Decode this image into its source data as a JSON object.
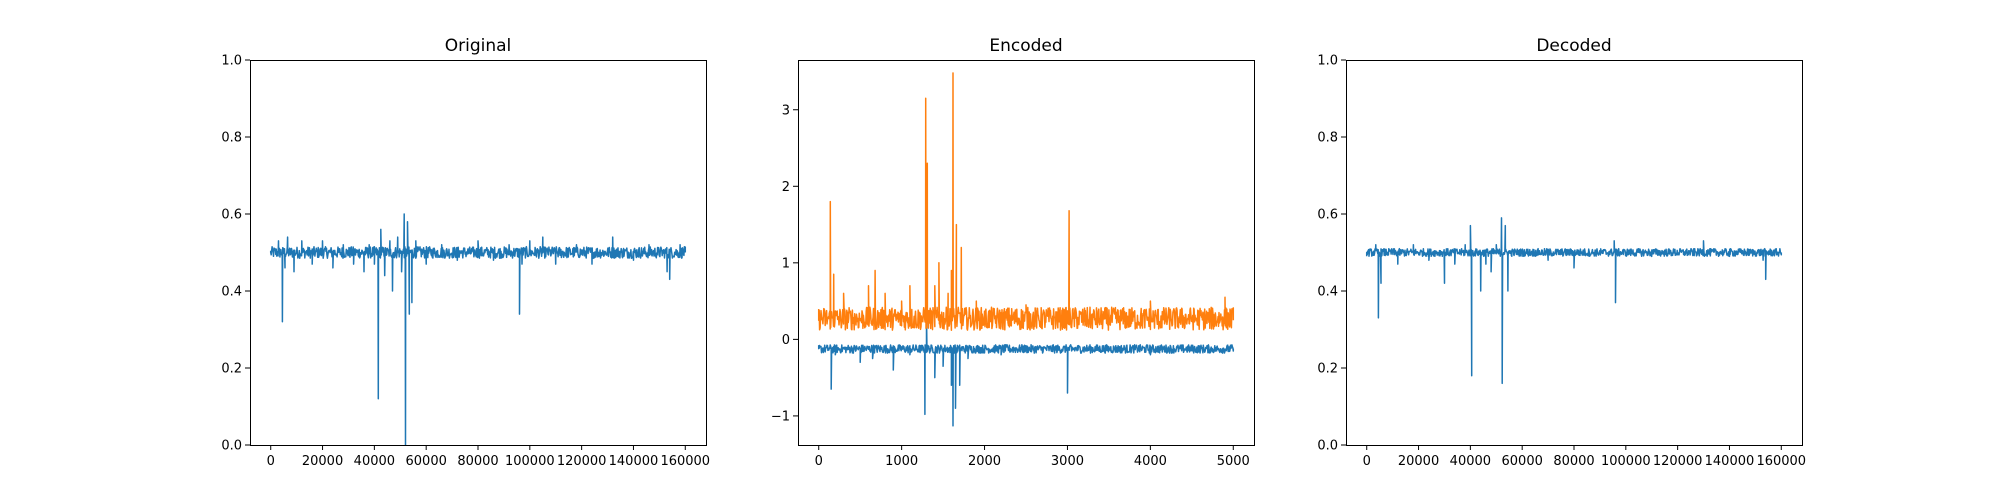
{
  "chart_data": [
    {
      "type": "line",
      "title": "Original",
      "xlabel": "",
      "ylabel": "",
      "xlim": [
        -8000,
        168000
      ],
      "ylim": [
        0.0,
        1.0
      ],
      "x_ticks": [
        0,
        20000,
        40000,
        60000,
        80000,
        100000,
        120000,
        140000,
        160000
      ],
      "x_tick_labels": [
        "0",
        "20000",
        "40000",
        "60000",
        "80000",
        "100000",
        "120000",
        "140000",
        "160000"
      ],
      "y_ticks": [
        0.0,
        0.2,
        0.4,
        0.6,
        0.8,
        1.0
      ],
      "y_tick_labels": [
        "0.0",
        "0.2",
        "0.4",
        "0.6",
        "0.8",
        "1.0"
      ],
      "grid": false,
      "series": [
        {
          "color": "#1f77b4",
          "baseline": 0.5,
          "band": [
            0.485,
            0.515
          ],
          "x_range": [
            0,
            160000
          ],
          "points": [
            [
              0,
              0.5
            ],
            [
              3000,
              0.53
            ],
            [
              4500,
              0.32
            ],
            [
              5500,
              0.46
            ],
            [
              6500,
              0.54
            ],
            [
              9000,
              0.45
            ],
            [
              12000,
              0.53
            ],
            [
              16000,
              0.47
            ],
            [
              20000,
              0.53
            ],
            [
              24000,
              0.46
            ],
            [
              28000,
              0.52
            ],
            [
              32000,
              0.47
            ],
            [
              36000,
              0.45
            ],
            [
              38000,
              0.52
            ],
            [
              40000,
              0.47
            ],
            [
              41500,
              0.12
            ],
            [
              42500,
              0.56
            ],
            [
              44000,
              0.44
            ],
            [
              46000,
              0.53
            ],
            [
              47000,
              0.4
            ],
            [
              49000,
              0.54
            ],
            [
              50500,
              0.45
            ],
            [
              51500,
              0.6
            ],
            [
              52000,
              0.0
            ],
            [
              52800,
              0.58
            ],
            [
              53500,
              0.34
            ],
            [
              54500,
              0.37
            ],
            [
              56000,
              0.53
            ],
            [
              60000,
              0.47
            ],
            [
              66000,
              0.52
            ],
            [
              72000,
              0.48
            ],
            [
              80000,
              0.53
            ],
            [
              86000,
              0.48
            ],
            [
              92000,
              0.52
            ],
            [
              96000,
              0.34
            ],
            [
              97000,
              0.47
            ],
            [
              100000,
              0.53
            ],
            [
              105000,
              0.54
            ],
            [
              110000,
              0.47
            ],
            [
              118000,
              0.52
            ],
            [
              124000,
              0.47
            ],
            [
              132000,
              0.54
            ],
            [
              140000,
              0.48
            ],
            [
              146000,
              0.52
            ],
            [
              153000,
              0.45
            ],
            [
              154000,
              0.43
            ],
            [
              158000,
              0.52
            ],
            [
              160000,
              0.5
            ]
          ]
        }
      ]
    },
    {
      "type": "line",
      "title": "Encoded",
      "xlabel": "",
      "ylabel": "",
      "xlim": [
        -250,
        5250
      ],
      "ylim": [
        -1.38,
        3.65
      ],
      "x_ticks": [
        0,
        1000,
        2000,
        3000,
        4000,
        5000
      ],
      "x_tick_labels": [
        "0",
        "1000",
        "2000",
        "3000",
        "4000",
        "5000"
      ],
      "y_ticks": [
        -1,
        0,
        1,
        2,
        3
      ],
      "y_tick_labels": [
        "−1",
        "0",
        "1",
        "2",
        "3"
      ],
      "grid": false,
      "series": [
        {
          "color": "#1f77b4",
          "baseline": -0.12,
          "band": [
            -0.18,
            -0.07
          ],
          "x_range": [
            0,
            5000
          ],
          "points": [
            [
              0,
              -0.12
            ],
            [
              150,
              -0.65
            ],
            [
              200,
              -0.2
            ],
            [
              500,
              -0.3
            ],
            [
              650,
              -0.25
            ],
            [
              900,
              -0.4
            ],
            [
              1100,
              -0.2
            ],
            [
              1280,
              -0.98
            ],
            [
              1300,
              0.3
            ],
            [
              1400,
              -0.5
            ],
            [
              1500,
              -0.35
            ],
            [
              1600,
              -0.6
            ],
            [
              1620,
              -1.13
            ],
            [
              1650,
              -0.9
            ],
            [
              1700,
              -0.6
            ],
            [
              1800,
              -0.25
            ],
            [
              2200,
              -0.2
            ],
            [
              3000,
              -0.7
            ],
            [
              3050,
              -0.15
            ],
            [
              4000,
              -0.2
            ],
            [
              4800,
              -0.15
            ],
            [
              5000,
              -0.12
            ]
          ]
        },
        {
          "color": "#ff7f0e",
          "baseline": 0.25,
          "band": [
            0.12,
            0.42
          ],
          "x_range": [
            0,
            5000
          ],
          "points": [
            [
              0,
              0.25
            ],
            [
              140,
              1.8
            ],
            [
              180,
              0.85
            ],
            [
              300,
              0.6
            ],
            [
              600,
              0.7
            ],
            [
              680,
              0.9
            ],
            [
              800,
              0.6
            ],
            [
              1000,
              0.5
            ],
            [
              1100,
              0.7
            ],
            [
              1290,
              3.15
            ],
            [
              1310,
              2.3
            ],
            [
              1400,
              0.7
            ],
            [
              1450,
              1.0
            ],
            [
              1560,
              0.6
            ],
            [
              1600,
              0.9
            ],
            [
              1620,
              3.48
            ],
            [
              1660,
              1.5
            ],
            [
              1720,
              1.2
            ],
            [
              1900,
              0.5
            ],
            [
              2500,
              0.45
            ],
            [
              3020,
              1.68
            ],
            [
              3100,
              0.4
            ],
            [
              4000,
              0.5
            ],
            [
              4900,
              0.55
            ],
            [
              5000,
              0.25
            ]
          ]
        }
      ]
    },
    {
      "type": "line",
      "title": "Decoded",
      "xlabel": "",
      "ylabel": "",
      "xlim": [
        -8000,
        168000
      ],
      "ylim": [
        0.0,
        1.0
      ],
      "x_ticks": [
        0,
        20000,
        40000,
        60000,
        80000,
        100000,
        120000,
        140000,
        160000
      ],
      "x_tick_labels": [
        "0",
        "20000",
        "40000",
        "60000",
        "80000",
        "100000",
        "120000",
        "140000",
        "160000"
      ],
      "y_ticks": [
        0.0,
        0.2,
        0.4,
        0.6,
        0.8,
        1.0
      ],
      "y_tick_labels": [
        "0.0",
        "0.2",
        "0.4",
        "0.6",
        "0.8",
        "1.0"
      ],
      "grid": false,
      "series": [
        {
          "color": "#1f77b4",
          "baseline": 0.5,
          "band": [
            0.49,
            0.51
          ],
          "x_range": [
            0,
            160000
          ],
          "points": [
            [
              0,
              0.5
            ],
            [
              3500,
              0.52
            ],
            [
              4500,
              0.33
            ],
            [
              5500,
              0.42
            ],
            [
              7000,
              0.5
            ],
            [
              12000,
              0.47
            ],
            [
              18000,
              0.52
            ],
            [
              24000,
              0.48
            ],
            [
              30000,
              0.42
            ],
            [
              34000,
              0.47
            ],
            [
              38000,
              0.52
            ],
            [
              40000,
              0.57
            ],
            [
              40500,
              0.18
            ],
            [
              42000,
              0.5
            ],
            [
              44000,
              0.4
            ],
            [
              46000,
              0.47
            ],
            [
              48000,
              0.45
            ],
            [
              50000,
              0.52
            ],
            [
              52000,
              0.59
            ],
            [
              52300,
              0.16
            ],
            [
              53500,
              0.57
            ],
            [
              54500,
              0.4
            ],
            [
              56000,
              0.5
            ],
            [
              70000,
              0.48
            ],
            [
              80000,
              0.46
            ],
            [
              90000,
              0.5
            ],
            [
              95500,
              0.53
            ],
            [
              96000,
              0.37
            ],
            [
              100000,
              0.5
            ],
            [
              110000,
              0.49
            ],
            [
              120000,
              0.5
            ],
            [
              130000,
              0.53
            ],
            [
              140000,
              0.49
            ],
            [
              153000,
              0.48
            ],
            [
              154000,
              0.43
            ],
            [
              158000,
              0.51
            ],
            [
              160000,
              0.5
            ]
          ]
        }
      ]
    }
  ]
}
